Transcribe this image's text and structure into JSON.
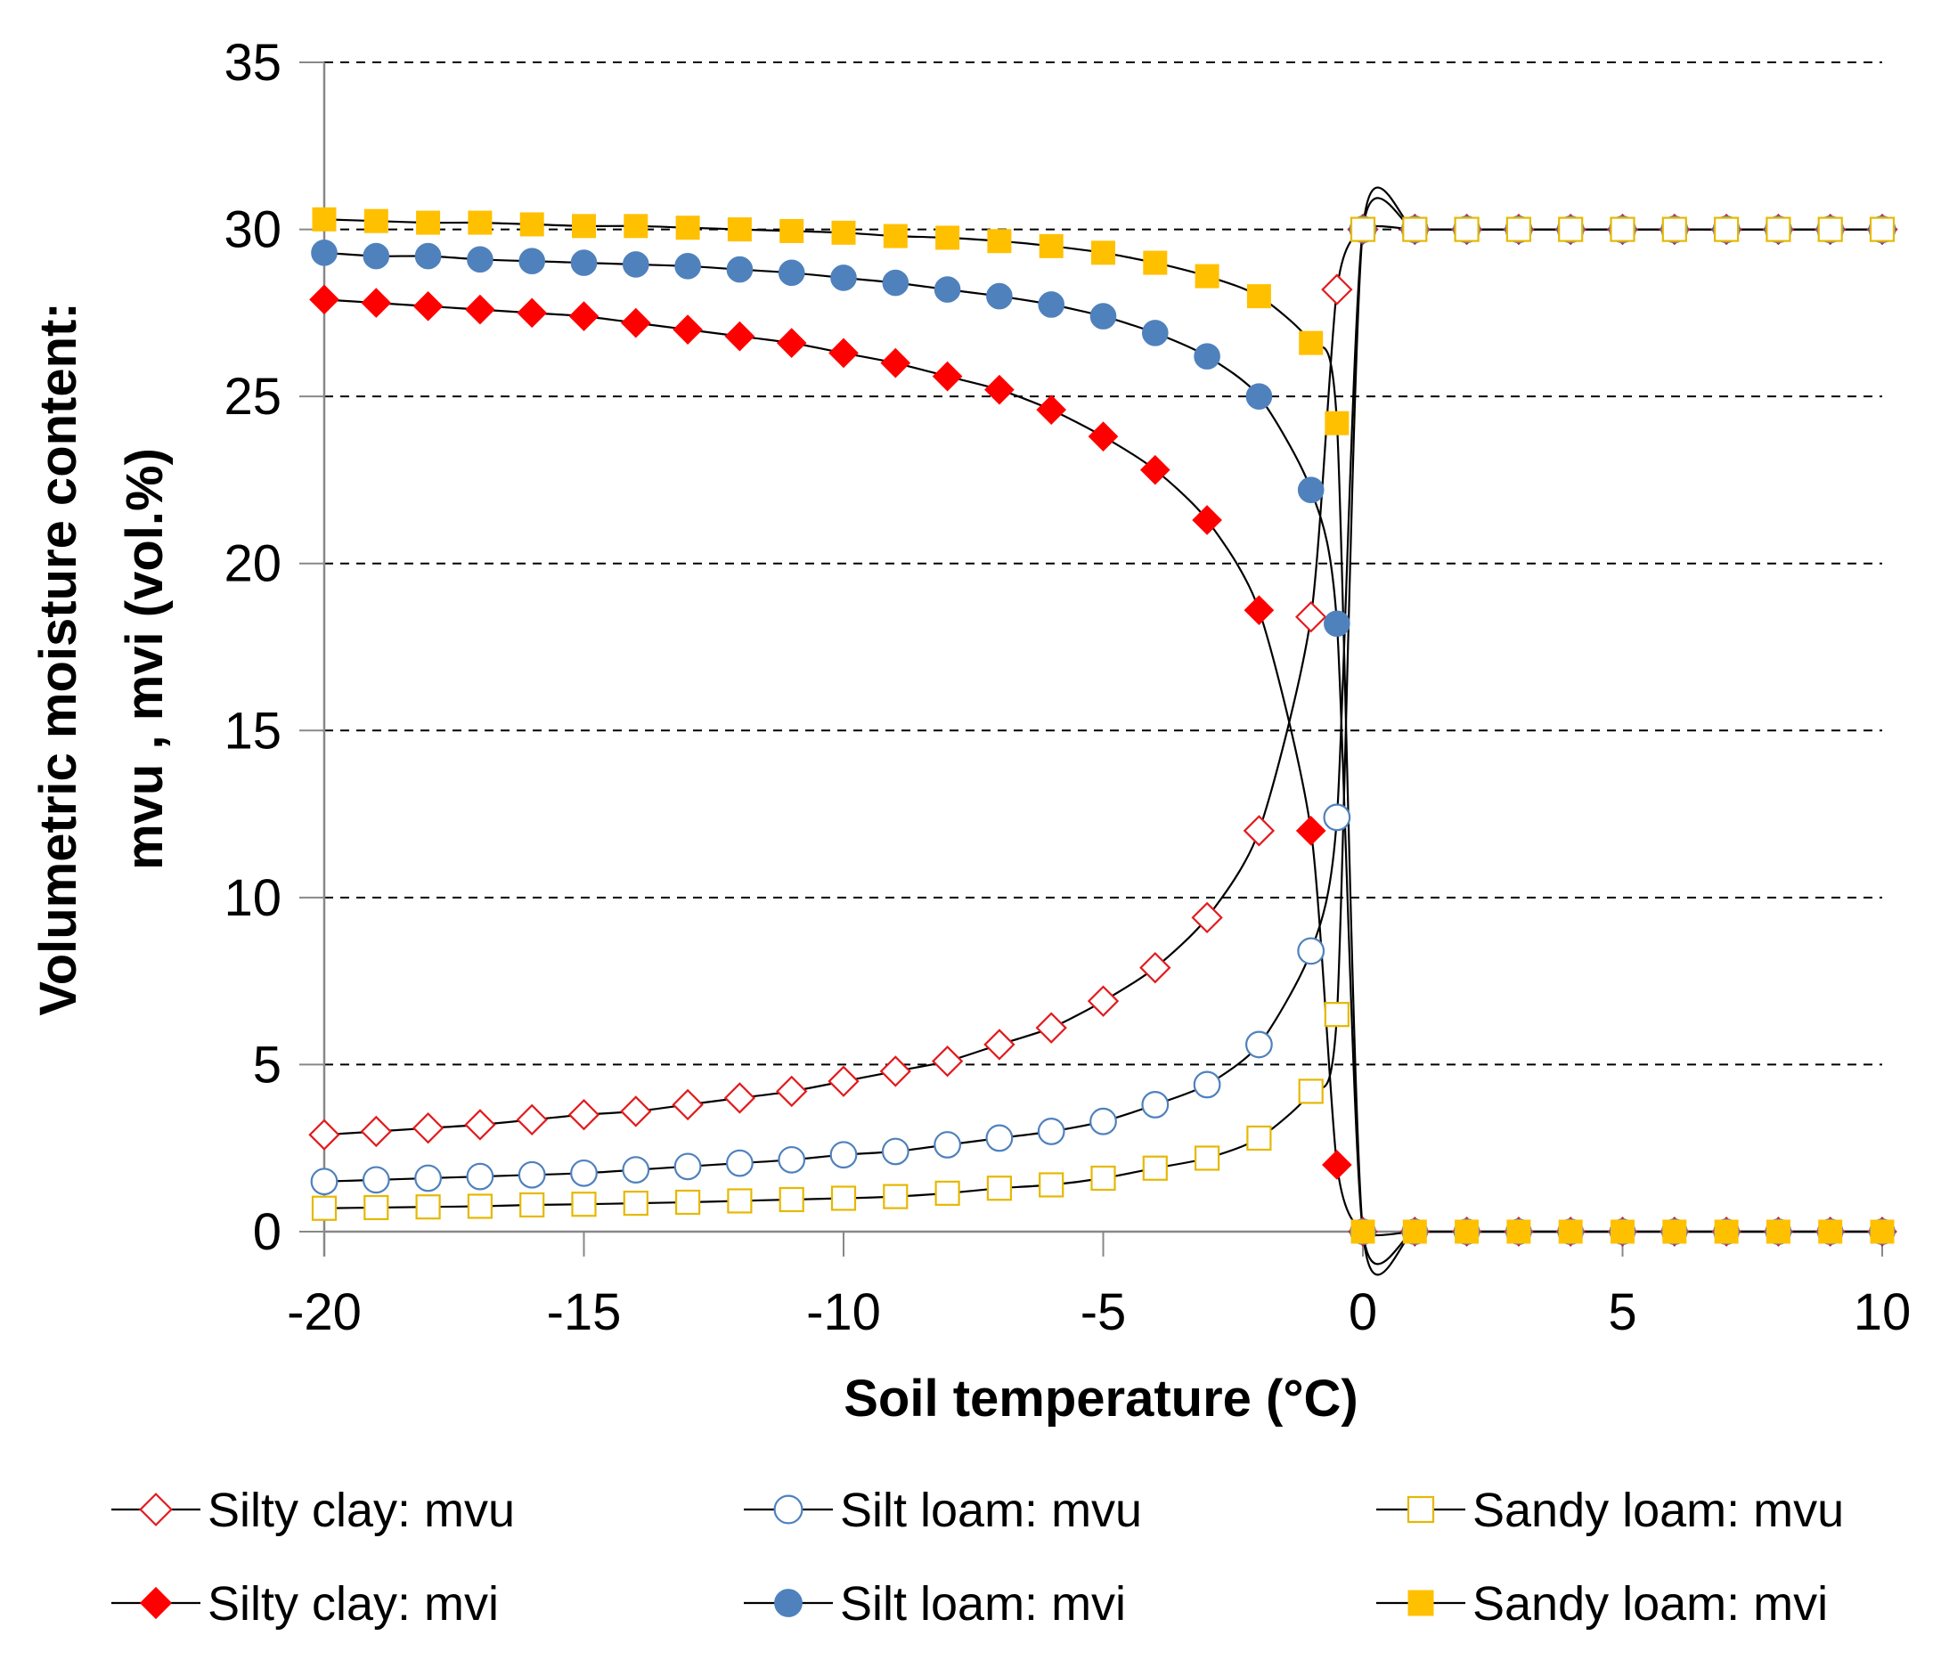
{
  "chart_data": {
    "type": "line",
    "xlabel": "Soil temperature (°C)",
    "ylabel_lines": [
      "Volumetric moisture content:",
      "mvu , mvi  (vol.%)"
    ],
    "xlim": [
      -20,
      10
    ],
    "ylim": [
      0,
      35
    ],
    "x_ticks": [
      -20,
      -15,
      -10,
      -5,
      0,
      5,
      10
    ],
    "y_ticks": [
      0,
      5,
      10,
      15,
      20,
      25,
      30,
      35
    ],
    "grid": "horizontal-dashed",
    "legend_position": "bottom",
    "x": [
      -20,
      -19,
      -18,
      -17,
      -16,
      -15,
      -14,
      -13,
      -12,
      -11,
      -10,
      -9,
      -8,
      -7,
      -6,
      -5,
      -4,
      -3,
      -2,
      -1,
      -0.5,
      0,
      1,
      2,
      3,
      4,
      5,
      6,
      7,
      8,
      9,
      10
    ],
    "series": [
      {
        "name": "Silty clay: mvu",
        "marker": "diamond-open",
        "color": "#e31a1c",
        "values": [
          2.9,
          3.0,
          3.1,
          3.2,
          3.35,
          3.5,
          3.6,
          3.8,
          4.0,
          4.2,
          4.5,
          4.8,
          5.1,
          5.6,
          6.1,
          6.9,
          7.9,
          9.4,
          12.0,
          18.4,
          28.2,
          30.0,
          30.0,
          30.0,
          30.0,
          30.0,
          30.0,
          30.0,
          30.0,
          30.0,
          30.0,
          30.0
        ]
      },
      {
        "name": "Silt loam: mvu",
        "marker": "circle-open",
        "color": "#4f81bd",
        "values": [
          1.5,
          1.55,
          1.6,
          1.65,
          1.7,
          1.75,
          1.85,
          1.95,
          2.05,
          2.15,
          2.3,
          2.4,
          2.6,
          2.8,
          3.0,
          3.3,
          3.8,
          4.4,
          5.6,
          8.4,
          12.4,
          30.0,
          30.0,
          30.0,
          30.0,
          30.0,
          30.0,
          30.0,
          30.0,
          30.0,
          30.0,
          30.0
        ]
      },
      {
        "name": "Sandy loam: mvu",
        "marker": "square-open",
        "color": "#e6b800",
        "values": [
          0.7,
          0.72,
          0.74,
          0.76,
          0.8,
          0.82,
          0.85,
          0.88,
          0.92,
          0.96,
          1.0,
          1.05,
          1.15,
          1.3,
          1.4,
          1.6,
          1.9,
          2.2,
          2.8,
          4.2,
          6.5,
          30.0,
          30.0,
          30.0,
          30.0,
          30.0,
          30.0,
          30.0,
          30.0,
          30.0,
          30.0,
          30.0
        ]
      },
      {
        "name": "Silty clay: mvi",
        "marker": "diamond-filled",
        "color": "#ff0000",
        "values": [
          27.9,
          27.8,
          27.7,
          27.6,
          27.5,
          27.4,
          27.2,
          27.0,
          26.8,
          26.6,
          26.3,
          26.0,
          25.6,
          25.2,
          24.6,
          23.8,
          22.8,
          21.3,
          18.6,
          12.0,
          2.0,
          0,
          0,
          0,
          0,
          0,
          0,
          0,
          0,
          0,
          0,
          0
        ]
      },
      {
        "name": "Silt loam: mvi",
        "marker": "circle-filled",
        "color": "#4f81bd",
        "values": [
          29.3,
          29.2,
          29.2,
          29.1,
          29.05,
          29.0,
          28.95,
          28.9,
          28.8,
          28.7,
          28.55,
          28.4,
          28.2,
          28.0,
          27.75,
          27.4,
          26.9,
          26.2,
          25.0,
          22.2,
          18.2,
          0,
          0,
          0,
          0,
          0,
          0,
          0,
          0,
          0,
          0,
          0
        ]
      },
      {
        "name": "Sandy loam: mvi",
        "marker": "square-filled",
        "color": "#ffc000",
        "values": [
          30.3,
          30.25,
          30.2,
          30.2,
          30.15,
          30.1,
          30.1,
          30.05,
          30.0,
          29.95,
          29.9,
          29.8,
          29.75,
          29.65,
          29.5,
          29.3,
          29.0,
          28.6,
          28.0,
          26.6,
          24.2,
          0,
          0,
          0,
          0,
          0,
          0,
          0,
          0,
          0,
          0,
          0
        ]
      }
    ]
  }
}
